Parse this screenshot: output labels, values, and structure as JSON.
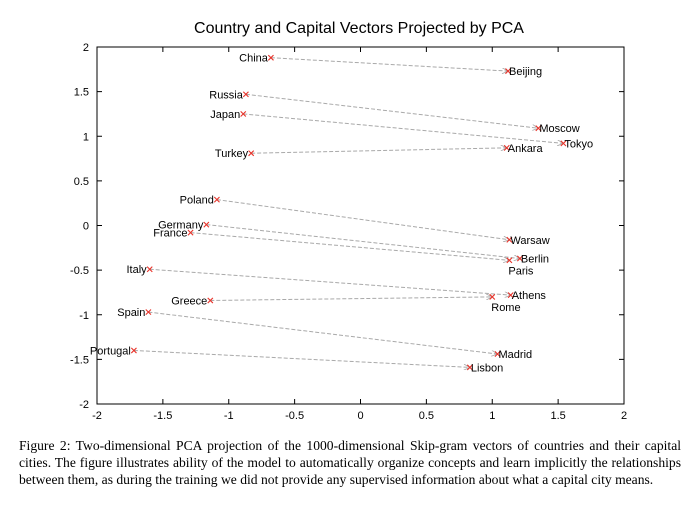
{
  "chart_data": {
    "type": "scatter",
    "title": "Country and Capital Vectors Projected by PCA",
    "xlabel": "",
    "ylabel": "",
    "xlim": [
      -2,
      2
    ],
    "ylim": [
      -2,
      2
    ],
    "x_ticks": [
      -2,
      -1.5,
      -1,
      -0.5,
      0,
      0.5,
      1,
      1.5,
      2
    ],
    "y_ticks": [
      -2,
      -1.5,
      -1,
      -0.5,
      0,
      0.5,
      1,
      1.5,
      2
    ],
    "x_tick_labels": [
      "-2",
      "-1.5",
      "-1",
      "-0.5",
      "0",
      "0.5",
      "1",
      "1.5",
      "2"
    ],
    "y_tick_labels": [
      "-2",
      "-1.5",
      "-1",
      "-0.5",
      "0",
      "0.5",
      "1",
      "1.5",
      "2"
    ],
    "grid": false,
    "legend": false,
    "marker_color": "#e8332a",
    "arrow_color": "#a9a9a9",
    "pairs": [
      {
        "country": "China",
        "country_x": -0.68,
        "country_y": 1.88,
        "capital": "Beijing",
        "capital_x": 1.12,
        "capital_y": 1.73
      },
      {
        "country": "Russia",
        "country_x": -0.87,
        "country_y": 1.47,
        "capital": "Moscow",
        "capital_x": 1.35,
        "capital_y": 1.09
      },
      {
        "country": "Japan",
        "country_x": -0.89,
        "country_y": 1.25,
        "capital": "Tokyo",
        "capital_x": 1.54,
        "capital_y": 0.92
      },
      {
        "country": "Turkey",
        "country_x": -0.83,
        "country_y": 0.81,
        "capital": "Ankara",
        "capital_x": 1.11,
        "capital_y": 0.87
      },
      {
        "country": "Poland",
        "country_x": -1.09,
        "country_y": 0.29,
        "capital": "Warsaw",
        "capital_x": 1.13,
        "capital_y": -0.16
      },
      {
        "country": "Germany",
        "country_x": -1.17,
        "country_y": 0.01,
        "capital": "Berlin",
        "capital_x": 1.21,
        "capital_y": -0.37
      },
      {
        "country": "France",
        "country_x": -1.29,
        "country_y": -0.08,
        "capital": "Paris",
        "capital_x": 1.13,
        "capital_y": -0.39
      },
      {
        "country": "Italy",
        "country_x": -1.6,
        "country_y": -0.49,
        "capital": "Athens",
        "capital_x": 1.14,
        "capital_y": -0.78
      },
      {
        "country": "Greece",
        "country_x": -1.14,
        "country_y": -0.84,
        "capital": "Rome",
        "capital_x": 1.0,
        "capital_y": -0.8
      },
      {
        "country": "Spain",
        "country_x": -1.61,
        "country_y": -0.97,
        "capital": "Madrid",
        "capital_x": 1.04,
        "capital_y": -1.44
      },
      {
        "country": "Portugal",
        "country_x": -1.72,
        "country_y": -1.4,
        "capital": "Lisbon",
        "capital_x": 0.83,
        "capital_y": -1.59
      }
    ]
  },
  "caption": {
    "label": "Figure 2:",
    "text": "Two-dimensional PCA projection of the 1000-dimensional Skip-gram vectors of countries and their capital cities. The figure illustrates ability of the model to automatically organize concepts and learn implicitly the relationships between them, as during the training we did not provide any supervised information about what a capital city means."
  }
}
